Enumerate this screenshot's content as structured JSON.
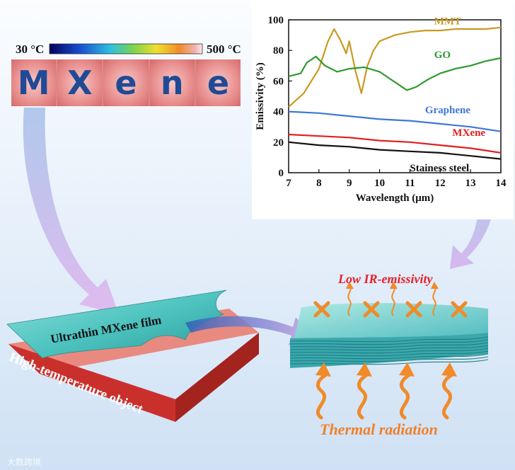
{
  "thermal_image": {
    "scale_min": "30 °C",
    "scale_max": "500 °C",
    "letters": [
      "M",
      "X",
      "e",
      "n",
      "e"
    ]
  },
  "chart_data": {
    "type": "line",
    "xlabel": "Wavelength (μm)",
    "ylabel": "Emissivity (%)",
    "xlim": [
      7,
      14
    ],
    "ylim": [
      0,
      100
    ],
    "xticks": [
      "7",
      "8",
      "9",
      "10",
      "11",
      "12",
      "13",
      "14"
    ],
    "yticks": [
      "0",
      "20",
      "40",
      "60",
      "80",
      "100"
    ],
    "grid": false,
    "series": [
      {
        "name": "MMT",
        "color": "#c99a22",
        "x": [
          7.0,
          7.5,
          8.0,
          8.3,
          8.5,
          8.7,
          8.9,
          9.0,
          9.2,
          9.4,
          9.6,
          9.8,
          10.0,
          10.5,
          11.0,
          11.5,
          12.0,
          12.5,
          13.0,
          13.5,
          14.0
        ],
        "y": [
          43,
          52,
          68,
          86,
          94,
          87,
          78,
          86,
          67,
          52,
          70,
          80,
          86,
          90,
          92,
          93,
          93,
          94,
          94,
          94,
          95
        ]
      },
      {
        "name": "GO",
        "color": "#2e9a2e",
        "x": [
          7.0,
          7.4,
          7.6,
          7.9,
          8.2,
          8.6,
          9.0,
          9.5,
          10.0,
          10.3,
          10.6,
          10.9,
          11.2,
          11.6,
          12.0,
          12.5,
          13.0,
          13.5,
          14.0
        ],
        "y": [
          63,
          65,
          72,
          76,
          70,
          66,
          68,
          69,
          66,
          62,
          58,
          54,
          56,
          61,
          65,
          68,
          70,
          73,
          75
        ]
      },
      {
        "name": "Graphene",
        "color": "#3c78d8",
        "x": [
          7,
          8,
          9,
          10,
          11,
          12,
          13,
          14
        ],
        "y": [
          40,
          39,
          37,
          35,
          34,
          32,
          30,
          27
        ]
      },
      {
        "name": "MXene",
        "color": "#e02020",
        "x": [
          7,
          8,
          9,
          10,
          11,
          12,
          13,
          14
        ],
        "y": [
          25,
          24,
          23,
          21,
          20,
          18,
          16,
          13
        ]
      },
      {
        "name": "Stainess steel",
        "color": "#111111",
        "x": [
          7,
          8,
          9,
          10,
          11,
          12,
          13,
          14
        ],
        "y": [
          20,
          18,
          17,
          15,
          14,
          13,
          11,
          9
        ]
      }
    ]
  },
  "diagram": {
    "film_label": "Ultrathin MXene film",
    "object_label": "High-temperature object",
    "low_ir_label": "Low IR-emissivity",
    "thermal_label": "Thermal radiation"
  },
  "watermark": "大数跨境",
  "colors": {
    "film_teal": "#4fc4c0",
    "object_red": "#c9302c",
    "arrow_orange": "#f0802a",
    "arrow_purple": "#c9a8e6",
    "cross_orange": "#f08a2a"
  }
}
